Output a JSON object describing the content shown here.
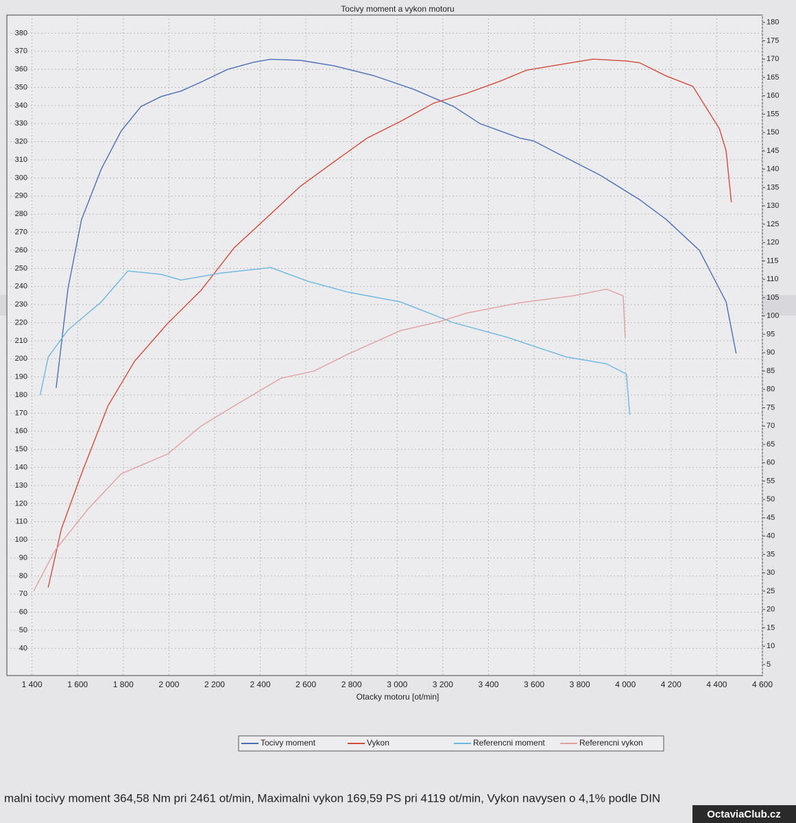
{
  "chart_data": {
    "type": "line",
    "title": "Tocivy moment a vykon motoru",
    "x_label": "Otacky motoru [ot/min]",
    "xlim": [
      1290,
      4600
    ],
    "xticks": [
      {
        "value": 1400,
        "label": "1 400"
      },
      {
        "value": 1600,
        "label": "1 600"
      },
      {
        "value": 1800,
        "label": "1 800"
      },
      {
        "value": 2000,
        "label": "2 000"
      },
      {
        "value": 2200,
        "label": "2 200"
      },
      {
        "value": 2400,
        "label": "2 400"
      },
      {
        "value": 2600,
        "label": "2 600"
      },
      {
        "value": 2800,
        "label": "2 800"
      },
      {
        "value": 3000,
        "label": "3 000"
      },
      {
        "value": 3200,
        "label": "3 200"
      },
      {
        "value": 3400,
        "label": "3 400"
      },
      {
        "value": 3600,
        "label": "3 600"
      },
      {
        "value": 3800,
        "label": "3 800"
      },
      {
        "value": 4000,
        "label": "4 000"
      },
      {
        "value": 4200,
        "label": "4 200"
      },
      {
        "value": 4400,
        "label": "4 400"
      },
      {
        "value": 4600,
        "label": "4 600"
      }
    ],
    "ylim": [
      25,
      390
    ],
    "yticks": [
      40,
      50,
      60,
      70,
      80,
      90,
      100,
      110,
      120,
      130,
      140,
      150,
      160,
      170,
      180,
      190,
      200,
      210,
      220,
      230,
      240,
      250,
      260,
      270,
      280,
      290,
      300,
      310,
      320,
      330,
      340,
      350,
      360,
      370,
      380
    ],
    "y2lim": [
      2,
      182
    ],
    "y2ticks": [
      5,
      10,
      15,
      20,
      25,
      30,
      35,
      40,
      45,
      50,
      55,
      60,
      65,
      70,
      75,
      80,
      85,
      90,
      95,
      100,
      105,
      110,
      115,
      120,
      125,
      130,
      135,
      140,
      145,
      150,
      155,
      160,
      165,
      170,
      175,
      180
    ],
    "grid": true,
    "legend": "bottom",
    "series": [
      {
        "name": "Tocivy moment",
        "color": "#4a6fb5",
        "axis": "y",
        "x": [
          1506,
          1558,
          1617,
          1704,
          1791,
          1878,
          1966,
          2053,
          2141,
          2257,
          2373,
          2446,
          2577,
          2723,
          2898,
          3072,
          3247,
          3363,
          3538,
          3597,
          3742,
          3888,
          4062,
          4179,
          4324,
          4441,
          4485
        ],
        "values": [
          184,
          239,
          277,
          305,
          326,
          339.5,
          345,
          348,
          353,
          360,
          364,
          365.6,
          365,
          362,
          356.5,
          349,
          339.5,
          330,
          322,
          320.5,
          311,
          301.6,
          288,
          277,
          260,
          231.5,
          203
        ]
      },
      {
        "name": "Vykon",
        "color": "#d24a3a",
        "axis": "y2",
        "x": [
          1471,
          1529,
          1617,
          1733,
          1850,
          1995,
          2141,
          2286,
          2432,
          2577,
          2723,
          2869,
          3014,
          3160,
          3305,
          3451,
          3567,
          3742,
          3859,
          4004,
          4062,
          4179,
          4295,
          4412,
          4441,
          4464
        ],
        "values": [
          26,
          42,
          57,
          75.5,
          87.7,
          98,
          107,
          118.6,
          127,
          135.4,
          142,
          148.5,
          153,
          158,
          160.7,
          164,
          167,
          168.8,
          170,
          169.5,
          169,
          165.4,
          162.6,
          151,
          145,
          131
        ]
      },
      {
        "name": "Referencni moment",
        "color": "#6ab7e0",
        "axis": "y",
        "x": [
          1436,
          1471,
          1558,
          1704,
          1820,
          1966,
          2053,
          2228,
          2446,
          2606,
          2781,
          3014,
          3247,
          3480,
          3742,
          3917,
          4004,
          4019
        ],
        "values": [
          180,
          201,
          216,
          231.5,
          248.6,
          246.7,
          243.6,
          247.4,
          250.5,
          243,
          237,
          231.5,
          220,
          212,
          201,
          197.3,
          191.6,
          169
        ]
      },
      {
        "name": "Referencni vykon",
        "color": "#e0a0a0",
        "axis": "y2",
        "x": [
          1407,
          1500,
          1646,
          1791,
          1995,
          2141,
          2286,
          2490,
          2636,
          2781,
          3014,
          3189,
          3305,
          3538,
          3771,
          3917,
          3990,
          3999
        ],
        "values": [
          25,
          36,
          47.4,
          57,
          62.4,
          70,
          75.5,
          83,
          85,
          89.5,
          96,
          98.5,
          100.8,
          103.6,
          105.5,
          107.3,
          105.5,
          94
        ]
      }
    ]
  },
  "footer": "malni tocivy moment 364,58 Nm pri 2461 ot/min,  Maximalni vykon 169,59 PS pri 4119 ot/min,  Vykon navysen o 4,1% podle DIN",
  "watermark": "OctaviaClub.cz"
}
